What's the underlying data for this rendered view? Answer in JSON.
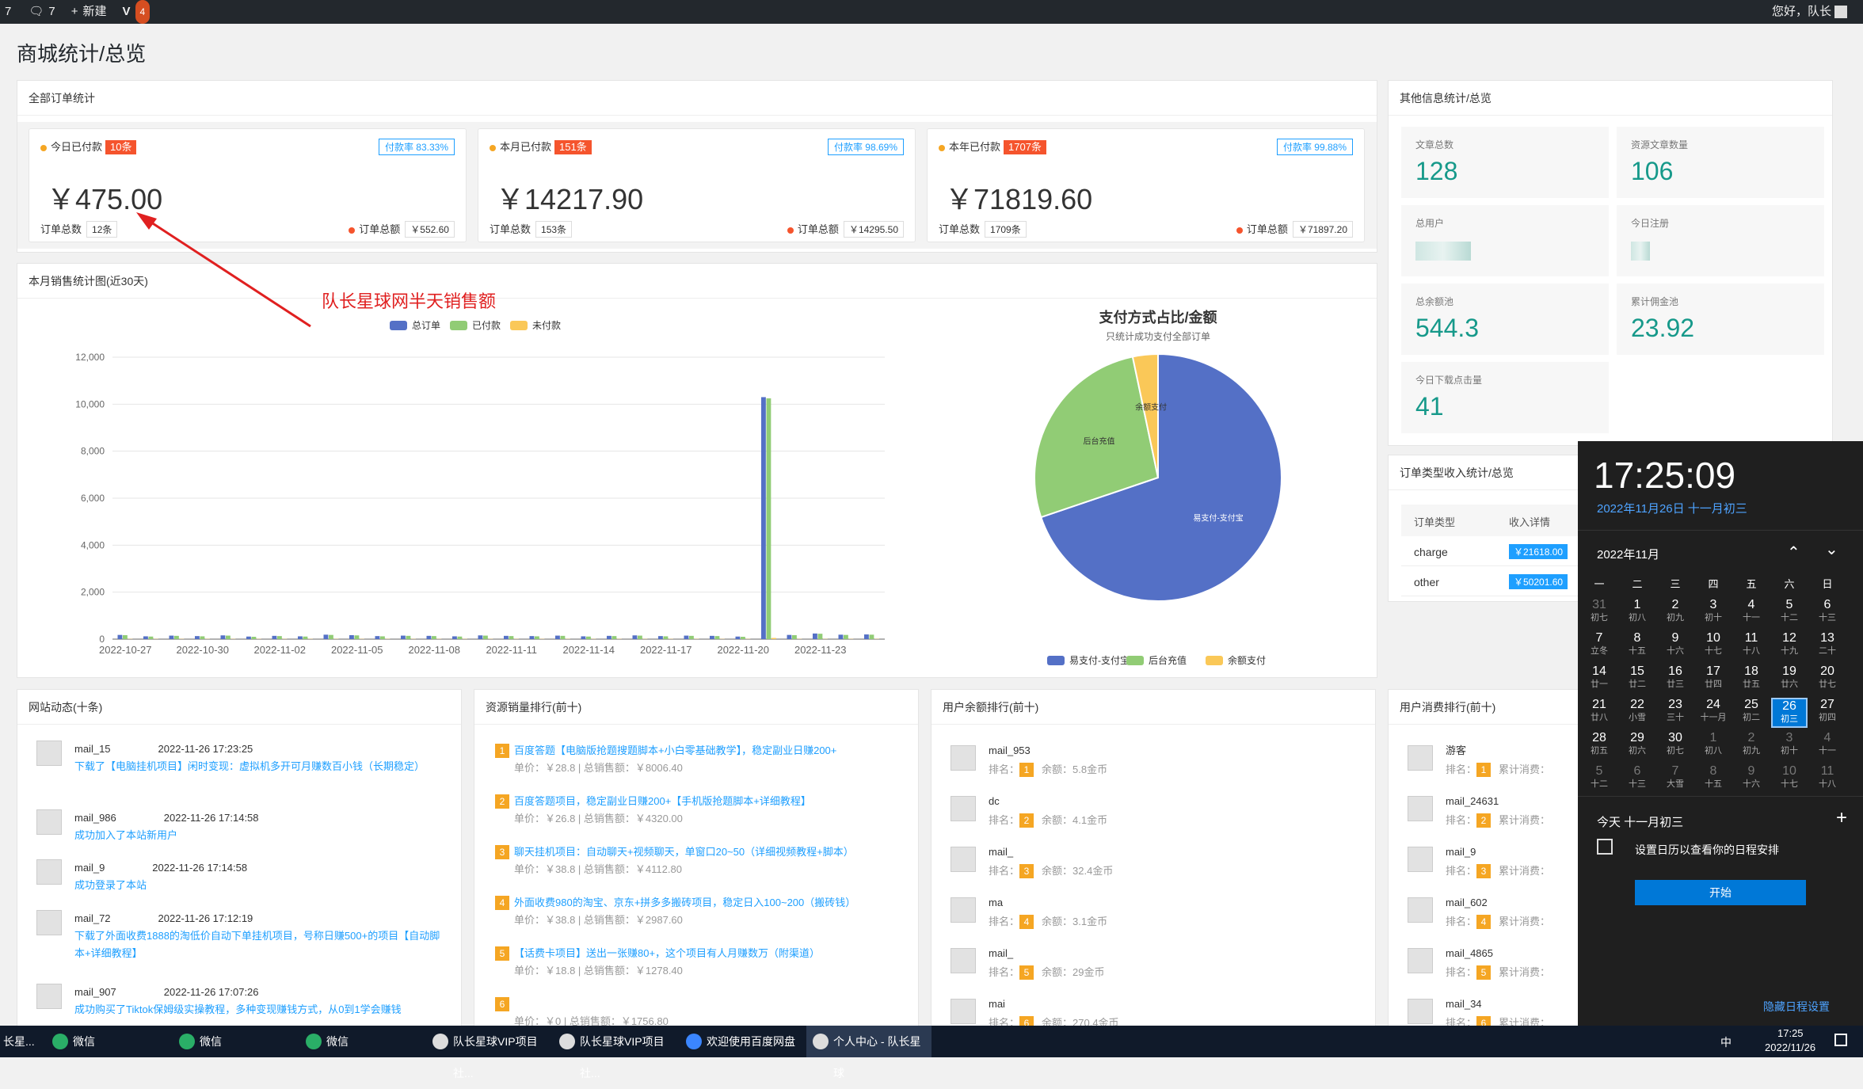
{
  "adminbar": {
    "count1": "7",
    "comments": "7",
    "new_label": "新建",
    "notif": "4",
    "greeting": "您好，队长"
  },
  "page_title": "商城统计/总览",
  "orders": {
    "title": "全部订单统计",
    "cards": [
      {
        "label": "今日已付款",
        "count": "10条",
        "rate": "付款率 83.33%",
        "amount": "￥475.00",
        "total_label": "订单总数",
        "total": "12条",
        "sum_label": "订单总额",
        "sum": "￥552.60"
      },
      {
        "label": "本月已付款",
        "count": "151条",
        "rate": "付款率 98.69%",
        "amount": "￥14217.90",
        "total_label": "订单总数",
        "total": "153条",
        "sum_label": "订单总额",
        "sum": "￥14295.50"
      },
      {
        "label": "本年已付款",
        "count": "1707条",
        "rate": "付款率 99.88%",
        "amount": "￥71819.60",
        "total_label": "订单总数",
        "total": "1709条",
        "sum_label": "订单总额",
        "sum": "￥71897.20"
      }
    ]
  },
  "annotation": "队长星球网半天销售额",
  "sales": {
    "title": "本月销售统计图(近30天)"
  },
  "chart_data": [
    {
      "type": "bar",
      "legend": [
        "总订单",
        "已付款",
        "未付款"
      ],
      "categories": [
        "2022-10-27",
        "2022-10-28",
        "2022-10-29",
        "2022-10-30",
        "2022-10-31",
        "2022-11-01",
        "2022-11-02",
        "2022-11-03",
        "2022-11-04",
        "2022-11-05",
        "2022-11-06",
        "2022-11-07",
        "2022-11-08",
        "2022-11-09",
        "2022-11-10",
        "2022-11-11",
        "2022-11-12",
        "2022-11-13",
        "2022-11-14",
        "2022-11-15",
        "2022-11-16",
        "2022-11-17",
        "2022-11-18",
        "2022-11-19",
        "2022-11-20",
        "2022-11-21",
        "2022-11-22",
        "2022-11-23",
        "2022-11-24",
        "2022-11-25"
      ],
      "tick_labels": [
        "2022-10-27",
        "2022-10-30",
        "2022-11-02",
        "2022-11-05",
        "2022-11-08",
        "2022-11-11",
        "2022-11-14",
        "2022-11-17",
        "2022-11-20",
        "2022-11-23"
      ],
      "yticks": [
        "0",
        "2,000",
        "4,000",
        "6,000",
        "8,000",
        "10,000",
        "12,000"
      ],
      "ylim": [
        0,
        12000
      ],
      "series": [
        {
          "name": "总订单",
          "color": "#5470c6",
          "values": [
            180,
            120,
            150,
            130,
            160,
            110,
            140,
            120,
            190,
            170,
            130,
            150,
            140,
            120,
            160,
            140,
            130,
            150,
            120,
            140,
            160,
            130,
            150,
            140,
            110,
            10300,
            180,
            240,
            190,
            200
          ]
        },
        {
          "name": "已付款",
          "color": "#91cc75",
          "values": [
            170,
            110,
            140,
            120,
            150,
            100,
            130,
            110,
            180,
            160,
            120,
            140,
            130,
            110,
            150,
            130,
            120,
            140,
            110,
            130,
            150,
            120,
            140,
            130,
            100,
            10250,
            170,
            230,
            180,
            190
          ]
        },
        {
          "name": "未付款",
          "color": "#fac858",
          "values": [
            10,
            10,
            10,
            10,
            10,
            10,
            10,
            10,
            10,
            10,
            10,
            10,
            10,
            10,
            10,
            10,
            10,
            10,
            10,
            10,
            10,
            10,
            10,
            10,
            10,
            50,
            10,
            10,
            10,
            10
          ]
        }
      ]
    },
    {
      "type": "pie",
      "title": "支付方式占比/金额",
      "subtitle": "只统计成功支付全部订单",
      "slices": [
        {
          "name": "易支付-支付宝",
          "value": 69.8,
          "color": "#5470c6"
        },
        {
          "name": "后台充值",
          "value": 26.9,
          "color": "#91cc75"
        },
        {
          "name": "余额支付",
          "value": 3.3,
          "color": "#fac858"
        }
      ]
    }
  ],
  "other": {
    "title": "其他信息统计/总览",
    "items": [
      {
        "label": "文章总数",
        "value": "128"
      },
      {
        "label": "资源文章数量",
        "value": "106"
      },
      {
        "label": "总用户",
        "value": ""
      },
      {
        "label": "今日注册",
        "value": ""
      },
      {
        "label": "总余额池",
        "value": "544.3"
      },
      {
        "label": "累计佣金池",
        "value": "23.92"
      },
      {
        "label": "今日下载点击量",
        "value": "41"
      }
    ]
  },
  "ordertype": {
    "title": "订单类型收入统计/总览",
    "col1": "订单类型",
    "col2": "收入详情",
    "rows": [
      {
        "type": "charge",
        "amount": "￥21618.00"
      },
      {
        "type": "other",
        "amount": "￥50201.60"
      }
    ]
  },
  "feed": {
    "title": "网站动态(十条)",
    "items": [
      {
        "user": "mail_15",
        "time": "2022-11-26 17:23:25",
        "text": "下载了【电脑挂机项目】闲时变现：虚拟机多开可月赚数百小钱（长期稳定）"
      },
      {
        "user": "mail_986",
        "time": "2022-11-26 17:14:58",
        "text": "成功加入了本站新用户"
      },
      {
        "user": "mail_9",
        "time": "2022-11-26 17:14:58",
        "text": "成功登录了本站"
      },
      {
        "user": "mail_72",
        "time": "2022-11-26 17:12:19",
        "text": "下载了外面收费1888的淘低价自动下单挂机项目，号称日赚500+的项目【自动脚本+详细教程】"
      },
      {
        "user": "mail_907",
        "time": "2022-11-26 17:07:26",
        "text": "成功购买了Tiktok保姆级实操教程，多种变现赚钱方式，从0到1学会赚钱"
      }
    ]
  },
  "resrank": {
    "title": "资源销量排行(前十)",
    "items": [
      {
        "n": "1",
        "name": "百度答题【电脑版抢题搜题脚本+小白零基础教学】，稳定副业日赚200+",
        "meta": "单价：￥28.8 | 总销售额：￥8006.40"
      },
      {
        "n": "2",
        "name": "百度答题项目，稳定副业日赚200+【手机版抢题脚本+详细教程】",
        "meta": "单价：￥26.8 | 总销售额：￥4320.00"
      },
      {
        "n": "3",
        "name": "聊天挂机项目：自动聊天+视频聊天，单窗口20~50（详细视频教程+脚本）",
        "meta": "单价：￥38.8 | 总销售额：￥4112.80"
      },
      {
        "n": "4",
        "name": "外面收费980的淘宝、京东+拼多多搬砖项目，稳定日入100~200（搬砖钱）",
        "meta": "单价：￥38.8 | 总销售额：￥2987.60"
      },
      {
        "n": "5",
        "name": "【话费卡项目】送出一张赚80+，这个项目有人月赚数万（附渠道）",
        "meta": "单价：￥18.8 | 总销售额：￥1278.40"
      },
      {
        "n": "6",
        "name": "",
        "meta": "单价：￥0 | 总销售额：￥1756.80"
      }
    ]
  },
  "balrank": {
    "title": "用户余额排行(前十)",
    "items": [
      {
        "user": "mail_953",
        "n": "1",
        "bal": "余额：5.8金币"
      },
      {
        "user": "dc",
        "n": "2",
        "bal": "余额：4.1金币"
      },
      {
        "user": "mail_",
        "n": "3",
        "bal": "余额：32.4金币"
      },
      {
        "user": "ma",
        "n": "4",
        "bal": "余额：3.1金币"
      },
      {
        "user": "mail_",
        "n": "5",
        "bal": "余额：29金币"
      },
      {
        "user": "mai",
        "n": "6",
        "bal": "余额：270.4金币"
      }
    ]
  },
  "consrank": {
    "title": "用户消费排行(前十)",
    "items": [
      {
        "user": "游客",
        "n": "1"
      },
      {
        "user": "mail_24631",
        "n": "2"
      },
      {
        "user": "mail_9",
        "n": "3"
      },
      {
        "user": "mail_602",
        "n": "4"
      },
      {
        "user": "mail_4865",
        "n": "5"
      },
      {
        "user": "mail_34",
        "n": "6"
      }
    ],
    "rank_label": "排名：",
    "cons_label": "累计消费："
  },
  "rank_label": "排名：",
  "calendar": {
    "time": "17:25:09",
    "date": "2022年11月26日 十一月初三",
    "month": "2022年11月",
    "weekdays": [
      "一",
      "二",
      "三",
      "四",
      "五",
      "六",
      "日"
    ],
    "days": [
      [
        "31",
        "初七"
      ],
      [
        "1",
        "初八"
      ],
      [
        "2",
        "初九"
      ],
      [
        "3",
        "初十"
      ],
      [
        "4",
        "十一"
      ],
      [
        "5",
        "十二"
      ],
      [
        "6",
        "十三"
      ],
      [
        "7",
        "立冬"
      ],
      [
        "8",
        "十五"
      ],
      [
        "9",
        "十六"
      ],
      [
        "10",
        "十七"
      ],
      [
        "11",
        "十八"
      ],
      [
        "12",
        "十九"
      ],
      [
        "13",
        "二十"
      ],
      [
        "14",
        "廿一"
      ],
      [
        "15",
        "廿二"
      ],
      [
        "16",
        "廿三"
      ],
      [
        "17",
        "廿四"
      ],
      [
        "18",
        "廿五"
      ],
      [
        "19",
        "廿六"
      ],
      [
        "20",
        "廿七"
      ],
      [
        "21",
        "廿八"
      ],
      [
        "22",
        "小雪"
      ],
      [
        "23",
        "三十"
      ],
      [
        "24",
        "十一月"
      ],
      [
        "25",
        "初二"
      ],
      [
        "26",
        "初三"
      ],
      [
        "27",
        "初四"
      ],
      [
        "28",
        "初五"
      ],
      [
        "29",
        "初六"
      ],
      [
        "30",
        "初七"
      ],
      [
        "1",
        "初八"
      ],
      [
        "2",
        "初九"
      ],
      [
        "3",
        "初十"
      ],
      [
        "4",
        "十一"
      ],
      [
        "5",
        "十二"
      ],
      [
        "6",
        "十三"
      ],
      [
        "7",
        "大雪"
      ],
      [
        "8",
        "十五"
      ],
      [
        "9",
        "十六"
      ],
      [
        "10",
        "十七"
      ],
      [
        "11",
        "十八"
      ]
    ],
    "today": "今天 十一月初三",
    "hint": "设置日历以查看你的日程安排",
    "start": "开始",
    "hide": "隐藏日程设置"
  },
  "taskbar": {
    "items": [
      "长星...",
      "微信",
      "微信",
      "微信",
      "队长星球VIP项目社...",
      "队长星球VIP项目社...",
      "欢迎使用百度网盘",
      "个人中心 - 队长星球"
    ],
    "ime": "中",
    "clock": "17:25",
    "date": "2022/11/26"
  }
}
